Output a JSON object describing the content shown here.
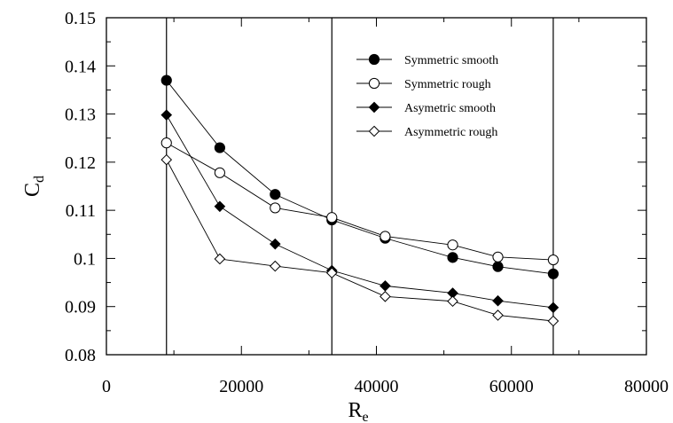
{
  "chart_data": {
    "type": "line",
    "xlabel": "R",
    "xlabel_sub": "e",
    "ylabel": "C",
    "ylabel_sub": "d",
    "xlim": [
      0,
      80000
    ],
    "ylim": [
      0.08,
      0.15
    ],
    "x_ticks": [
      0,
      20000,
      40000,
      60000,
      80000
    ],
    "x_tick_labels": [
      "0",
      "20000",
      "40000",
      "60000",
      "80000"
    ],
    "y_ticks": [
      0.08,
      0.09,
      0.1,
      0.11,
      0.12,
      0.13,
      0.14,
      0.15
    ],
    "y_tick_labels": [
      "0.08",
      "0.09",
      "0.1",
      "0.11",
      "0.12",
      "0.13",
      "0.14",
      "0.15"
    ],
    "grid": false,
    "legend_position": "top-right",
    "reference_lines_x": [
      8900,
      33400,
      66200
    ],
    "series": [
      {
        "name": "Symmetric smooth",
        "marker": "filled-circle",
        "x": [
          8900,
          16800,
          25000,
          33400,
          41300,
          51300,
          58000,
          66200
        ],
        "y": [
          0.137,
          0.123,
          0.1133,
          0.108,
          0.1042,
          0.1002,
          0.0983,
          0.0968
        ]
      },
      {
        "name": "Symmetric rough",
        "marker": "open-circle",
        "x": [
          8900,
          16800,
          25000,
          33400,
          41300,
          51300,
          58000,
          66200
        ],
        "y": [
          0.124,
          0.1178,
          0.1105,
          0.1085,
          0.1046,
          0.1028,
          0.1003,
          0.0997
        ]
      },
      {
        "name": "Asymetric smooth",
        "marker": "filled-diamond",
        "x": [
          8900,
          16800,
          25000,
          33400,
          41300,
          51300,
          58000,
          66200
        ],
        "y": [
          0.1298,
          0.1108,
          0.103,
          0.0975,
          0.0943,
          0.0928,
          0.0912,
          0.0898
        ]
      },
      {
        "name": "Asymmetric rough",
        "marker": "open-diamond",
        "x": [
          8900,
          16800,
          25000,
          33400,
          41300,
          51300,
          58000,
          66200
        ],
        "y": [
          0.1205,
          0.0999,
          0.0984,
          0.097,
          0.0921,
          0.0911,
          0.0882,
          0.087
        ]
      }
    ]
  }
}
